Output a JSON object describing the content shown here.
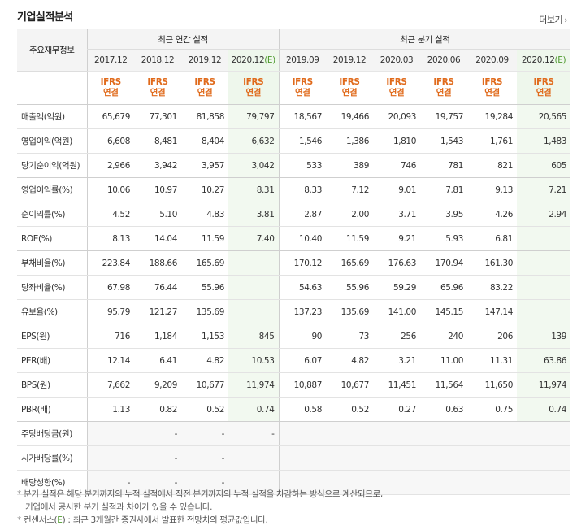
{
  "title": "기업실적분석",
  "more": "더보기",
  "more_arrow": "›",
  "header": {
    "row_label": "주요재무정보",
    "annual_group": "최근 연간 실적",
    "quarter_group": "최근 분기 실적",
    "annual_periods": [
      "2017.12",
      "2018.12",
      "2019.12",
      "2020.12"
    ],
    "annual_est_mark": "(E)",
    "quarter_periods": [
      "2019.09",
      "2019.12",
      "2020.03",
      "2020.06",
      "2020.09",
      "2020.12"
    ],
    "quarter_est_mark": "(E)",
    "ifrs": "IFRS",
    "consolidated": "연결"
  },
  "rows": [
    {
      "label": "매출액(억원)",
      "values": [
        "65,679",
        "77,301",
        "81,858",
        "79,797",
        "18,567",
        "19,466",
        "20,093",
        "19,757",
        "19,284",
        "20,565"
      ]
    },
    {
      "label": "영업이익(억원)",
      "values": [
        "6,608",
        "8,481",
        "8,404",
        "6,632",
        "1,546",
        "1,386",
        "1,810",
        "1,543",
        "1,761",
        "1,483"
      ]
    },
    {
      "label": "당기순이익(억원)",
      "values": [
        "2,966",
        "3,942",
        "3,957",
        "3,042",
        "533",
        "389",
        "746",
        "781",
        "821",
        "605"
      ]
    },
    {
      "label": "영업이익률(%)",
      "values": [
        "10.06",
        "10.97",
        "10.27",
        "8.31",
        "8.33",
        "7.12",
        "9.01",
        "7.81",
        "9.13",
        "7.21"
      ]
    },
    {
      "label": "순이익률(%)",
      "values": [
        "4.52",
        "5.10",
        "4.83",
        "3.81",
        "2.87",
        "2.00",
        "3.71",
        "3.95",
        "4.26",
        "2.94"
      ]
    },
    {
      "label": "ROE(%)",
      "values": [
        "8.13",
        "14.04",
        "11.59",
        "7.40",
        "10.40",
        "11.59",
        "9.21",
        "5.93",
        "6.81",
        ""
      ]
    },
    {
      "label": "부채비율(%)",
      "values": [
        "223.84",
        "188.66",
        "165.69",
        "",
        "170.12",
        "165.69",
        "176.63",
        "170.94",
        "161.30",
        ""
      ]
    },
    {
      "label": "당좌비율(%)",
      "values": [
        "67.98",
        "76.44",
        "55.96",
        "",
        "54.63",
        "55.96",
        "59.29",
        "65.96",
        "83.22",
        ""
      ]
    },
    {
      "label": "유보율(%)",
      "values": [
        "95.79",
        "121.27",
        "135.69",
        "",
        "137.23",
        "135.69",
        "141.00",
        "145.15",
        "147.14",
        ""
      ]
    },
    {
      "label": "EPS(원)",
      "values": [
        "716",
        "1,184",
        "1,153",
        "845",
        "90",
        "73",
        "256",
        "240",
        "206",
        "139"
      ]
    },
    {
      "label": "PER(배)",
      "values": [
        "12.14",
        "6.41",
        "4.82",
        "10.53",
        "6.07",
        "4.82",
        "3.21",
        "11.00",
        "11.31",
        "63.86"
      ]
    },
    {
      "label": "BPS(원)",
      "values": [
        "7,662",
        "9,209",
        "10,677",
        "11,974",
        "10,887",
        "10,677",
        "11,451",
        "11,564",
        "11,650",
        "11,974"
      ]
    },
    {
      "label": "PBR(배)",
      "values": [
        "1.13",
        "0.82",
        "0.52",
        "0.74",
        "0.58",
        "0.52",
        "0.27",
        "0.63",
        "0.75",
        "0.74"
      ]
    },
    {
      "label": "주당배당금(원)",
      "values": [
        "",
        "-",
        "-",
        "-",
        "",
        "",
        "",
        "",
        "",
        ""
      ]
    },
    {
      "label": "시가배당률(%)",
      "values": [
        "",
        "-",
        "-",
        "",
        "",
        "",
        "",
        "",
        "",
        ""
      ]
    },
    {
      "label": "배당성향(%)",
      "values": [
        "-",
        "-",
        "-",
        "",
        "",
        "",
        "",
        "",
        "",
        ""
      ]
    }
  ],
  "notes": {
    "line1": "분기 실적은 해당 분기까지의 누적 실적에서 직전 분기까지의 누적 실적을 차감하는 방식으로 계산되므로,",
    "line2": "기업에서 공시한 분기 실적과 차이가 있을 수 있습니다.",
    "line3_pre": "컨센서스(",
    "line3_mark": "E",
    "line3_post": ") : 최근 3개월간 증권사에서 발표한 전망치의 평균값입니다.",
    "bullet": "*"
  },
  "colors": {
    "ifrs": "#e06a1b",
    "estimate_mark": "#4e9a2e",
    "estimate_bg": "#f2f9f0"
  }
}
